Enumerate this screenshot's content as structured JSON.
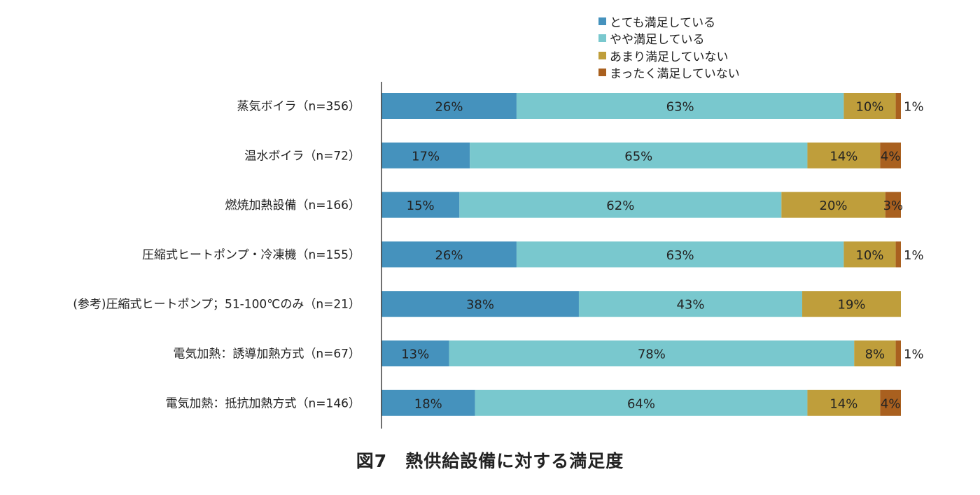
{
  "chart_data": {
    "type": "bar",
    "orientation": "horizontal",
    "stacked": true,
    "title": "図7　熱供給設備に対する満足度",
    "xlabel": "",
    "ylabel": "",
    "xlim": [
      0,
      100
    ],
    "grid": false,
    "legend_position": "top-right",
    "categories": [
      "蒸気ボイラ（n=356）",
      "温水ボイラ（n=72）",
      "燃焼加熱設備（n=166）",
      "圧縮式ヒートポンプ・冷凍機（n=155）",
      "(参考)圧縮式ヒートポンプ；51-100℃のみ（n=21）",
      "電気加熱：誘導加熱方式（n=67）",
      "電気加熱：抵抗加熱方式（n=146）"
    ],
    "series": [
      {
        "name": "とても満足している",
        "color": "#4592bd",
        "values": [
          26,
          17,
          15,
          26,
          38,
          13,
          18
        ],
        "labels": [
          "26%",
          "17%",
          "15%",
          "26%",
          "38%",
          "13%",
          "18%"
        ]
      },
      {
        "name": "やや満足している",
        "color": "#79c8ce",
        "values": [
          63,
          65,
          62,
          63,
          43,
          78,
          64
        ],
        "labels": [
          "63%",
          "65%",
          "62%",
          "63%",
          "43%",
          "78%",
          "64%"
        ]
      },
      {
        "name": "あまり満足していない",
        "color": "#bf9e3b",
        "values": [
          10,
          14,
          20,
          10,
          19,
          8,
          14
        ],
        "labels": [
          "10%",
          "14%",
          "20%",
          "10%",
          "19%",
          "8%",
          "14%"
        ]
      },
      {
        "name": "まったく満足していない",
        "color": "#a9601f",
        "values": [
          1,
          4,
          3,
          1,
          0,
          1,
          4
        ],
        "labels": [
          "1%",
          "4%",
          "3%",
          "1%",
          "",
          "1%",
          "4%"
        ]
      }
    ]
  }
}
